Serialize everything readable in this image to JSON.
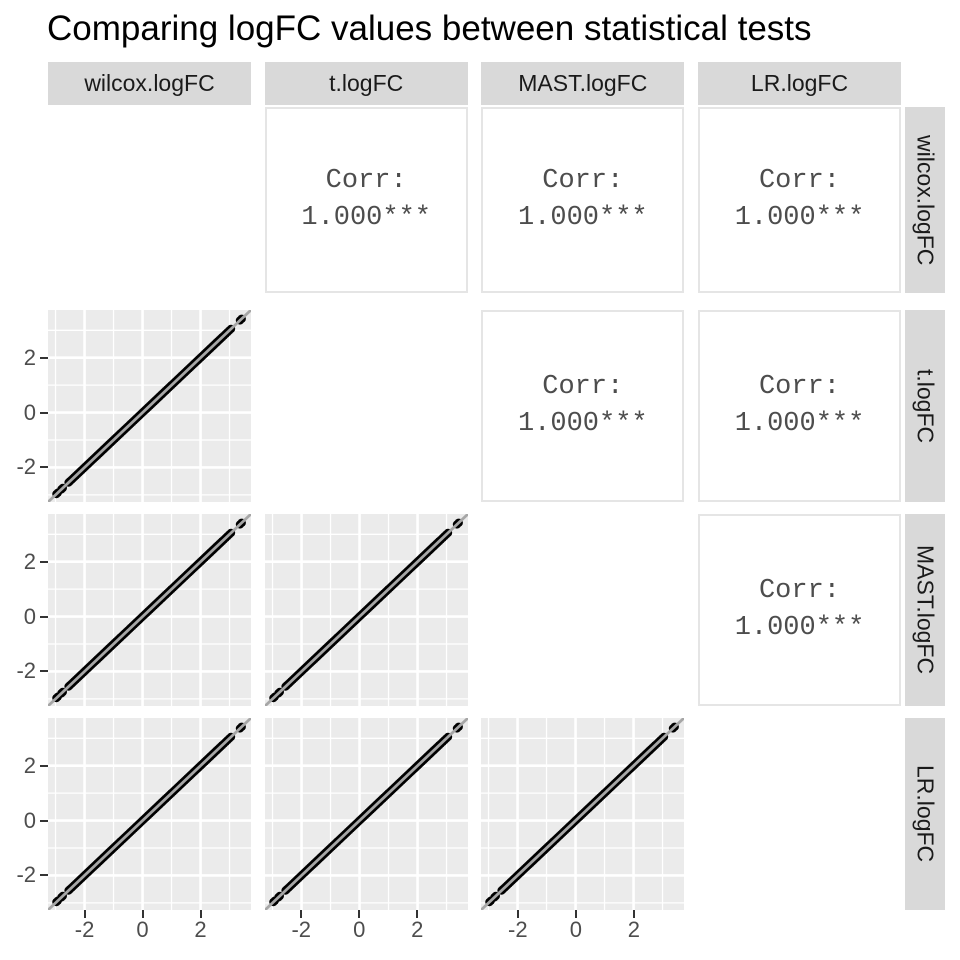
{
  "title": "Comparing logFC values between statistical tests",
  "chart_data": {
    "type": "scatter",
    "subtype": "scatter_matrix",
    "title": "Comparing logFC values between statistical tests",
    "variables": [
      "wilcox.logFC",
      "t.logFC",
      "MAST.logFC",
      "LR.logFC"
    ],
    "axis_range": [
      -3.26,
      3.74
    ],
    "major_ticks": [
      -2,
      0,
      2
    ],
    "minor_gridlines": [
      -3,
      -1,
      1,
      3
    ],
    "correlation_label": "Corr:",
    "correlation_value": "1.000***",
    "upper_triangle": [
      {
        "row": "wilcox.logFC",
        "col": "t.logFC",
        "corr": "1.000***"
      },
      {
        "row": "wilcox.logFC",
        "col": "MAST.logFC",
        "corr": "1.000***"
      },
      {
        "row": "wilcox.logFC",
        "col": "LR.logFC",
        "corr": "1.000***"
      },
      {
        "row": "t.logFC",
        "col": "MAST.logFC",
        "corr": "1.000***"
      },
      {
        "row": "t.logFC",
        "col": "LR.logFC",
        "corr": "1.000***"
      },
      {
        "row": "MAST.logFC",
        "col": "LR.logFC",
        "corr": "1.000***"
      }
    ],
    "lower_triangle": "scatter plots; all points lie exactly on the identity line y = x",
    "scatter_points": {
      "relationship": "y_equals_x",
      "band": {
        "min": -2.55,
        "max": 2.8,
        "step": 0.05
      },
      "isolated": [
        -2.97,
        -2.92,
        -2.8,
        -2.75,
        2.87,
        2.93,
        2.99,
        3.05,
        3.36,
        3.42
      ]
    },
    "styles": {
      "panel_bg": "#EBEBEB",
      "grid": "#FFFFFF",
      "strip_bg": "#D9D9D9",
      "point": "#000000",
      "identity_line": "#A6A6A6",
      "tick_label": "#4D4D4D",
      "corr_text": "#4D4D4D",
      "corr_border": "#E5E5E5"
    }
  }
}
